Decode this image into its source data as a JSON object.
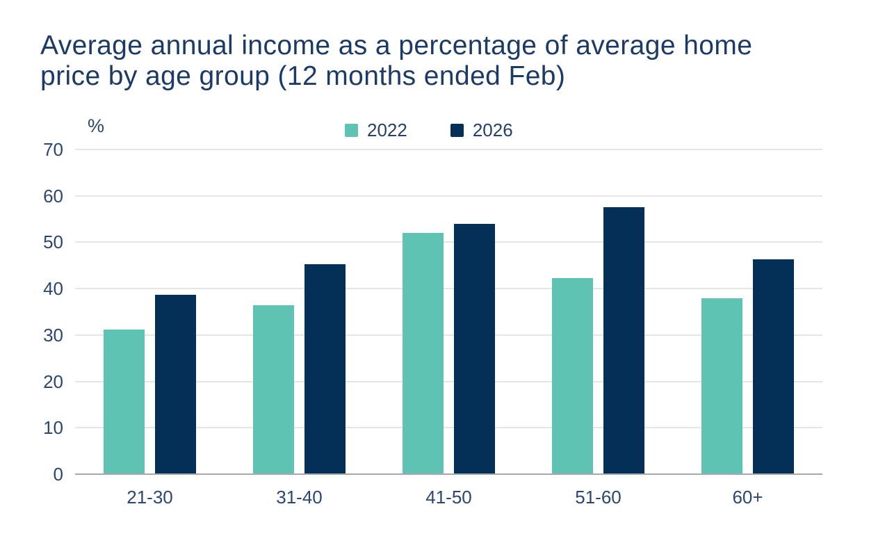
{
  "title": "Average annual income as a percentage of average home price by age group (12 months ended Feb)",
  "title_lines": [
    "Average annual income as a percentage of average home",
    "price by age group (12 months ended Feb)"
  ],
  "y_axis_unit": "%",
  "legend": {
    "items": [
      {
        "label": "2022",
        "color": "#5ec3b2"
      },
      {
        "label": "2026",
        "color": "#043058"
      }
    ]
  },
  "chart_data": {
    "type": "bar",
    "title": "Average annual income as a percentage of average home price by age group (12 months ended Feb)",
    "categories": [
      "21-30",
      "31-40",
      "41-50",
      "51-60",
      "60+"
    ],
    "series": [
      {
        "name": "2022",
        "color": "#5ec3b2",
        "values": [
          31.2,
          36.5,
          52,
          42.2,
          38
        ]
      },
      {
        "name": "2026",
        "color": "#043058",
        "values": [
          38.7,
          45.2,
          54,
          57.5,
          46.3
        ]
      }
    ],
    "xlabel": "",
    "ylabel": "%",
    "ylim": [
      0,
      70
    ],
    "yticks": [
      70,
      60,
      50,
      40,
      30,
      20,
      10,
      0
    ],
    "grid": true,
    "legend_position": "top-center"
  },
  "colors": {
    "background": "#ffffff",
    "title_text": "#1c3a66",
    "axis_text": "#2b4770",
    "gridline": "#e5e5e5",
    "zero_line": "#a8a8a8",
    "series_2022": "#5ec3b2",
    "series_2026": "#043058"
  }
}
